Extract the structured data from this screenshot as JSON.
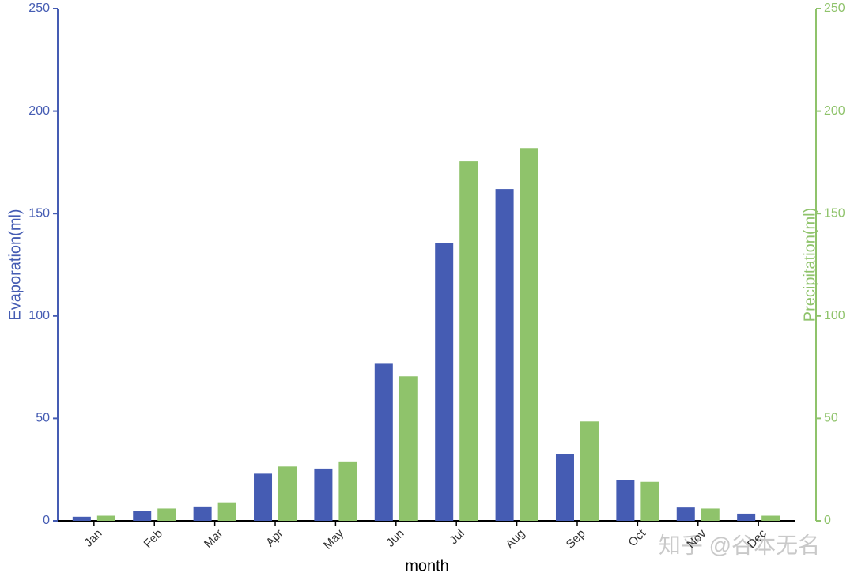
{
  "chart_data": {
    "type": "bar",
    "x_label": "month",
    "y_label": "Evaporation(ml)",
    "y2_label": "Precipitation(ml)",
    "categories": [
      "Jan",
      "Feb",
      "Mar",
      "Apr",
      "May",
      "Jun",
      "Jul",
      "Aug",
      "Sep",
      "Oct",
      "Nov",
      "Dec"
    ],
    "series": [
      {
        "name": "Evaporation(ml)",
        "color": "#455cb3",
        "axis": "y",
        "values": [
          2,
          4.8,
          7,
          23,
          25.5,
          77,
          135.5,
          162,
          32.5,
          20,
          6.5,
          3.5
        ]
      },
      {
        "name": "Precipitation(ml)",
        "color": "#8fc36b",
        "axis": "y2",
        "values": [
          2.5,
          6,
          9,
          26.5,
          29,
          70.5,
          175.5,
          182,
          48.5,
          19,
          6,
          2.5
        ]
      }
    ],
    "ylim": [
      0,
      250
    ],
    "yticks": [
      0,
      50,
      100,
      150,
      200,
      250
    ],
    "y2lim": [
      0,
      250
    ],
    "y2ticks": [
      0,
      50,
      100,
      150,
      200,
      250
    ],
    "grid": false,
    "watermark": "知乎 @谷本无名"
  }
}
